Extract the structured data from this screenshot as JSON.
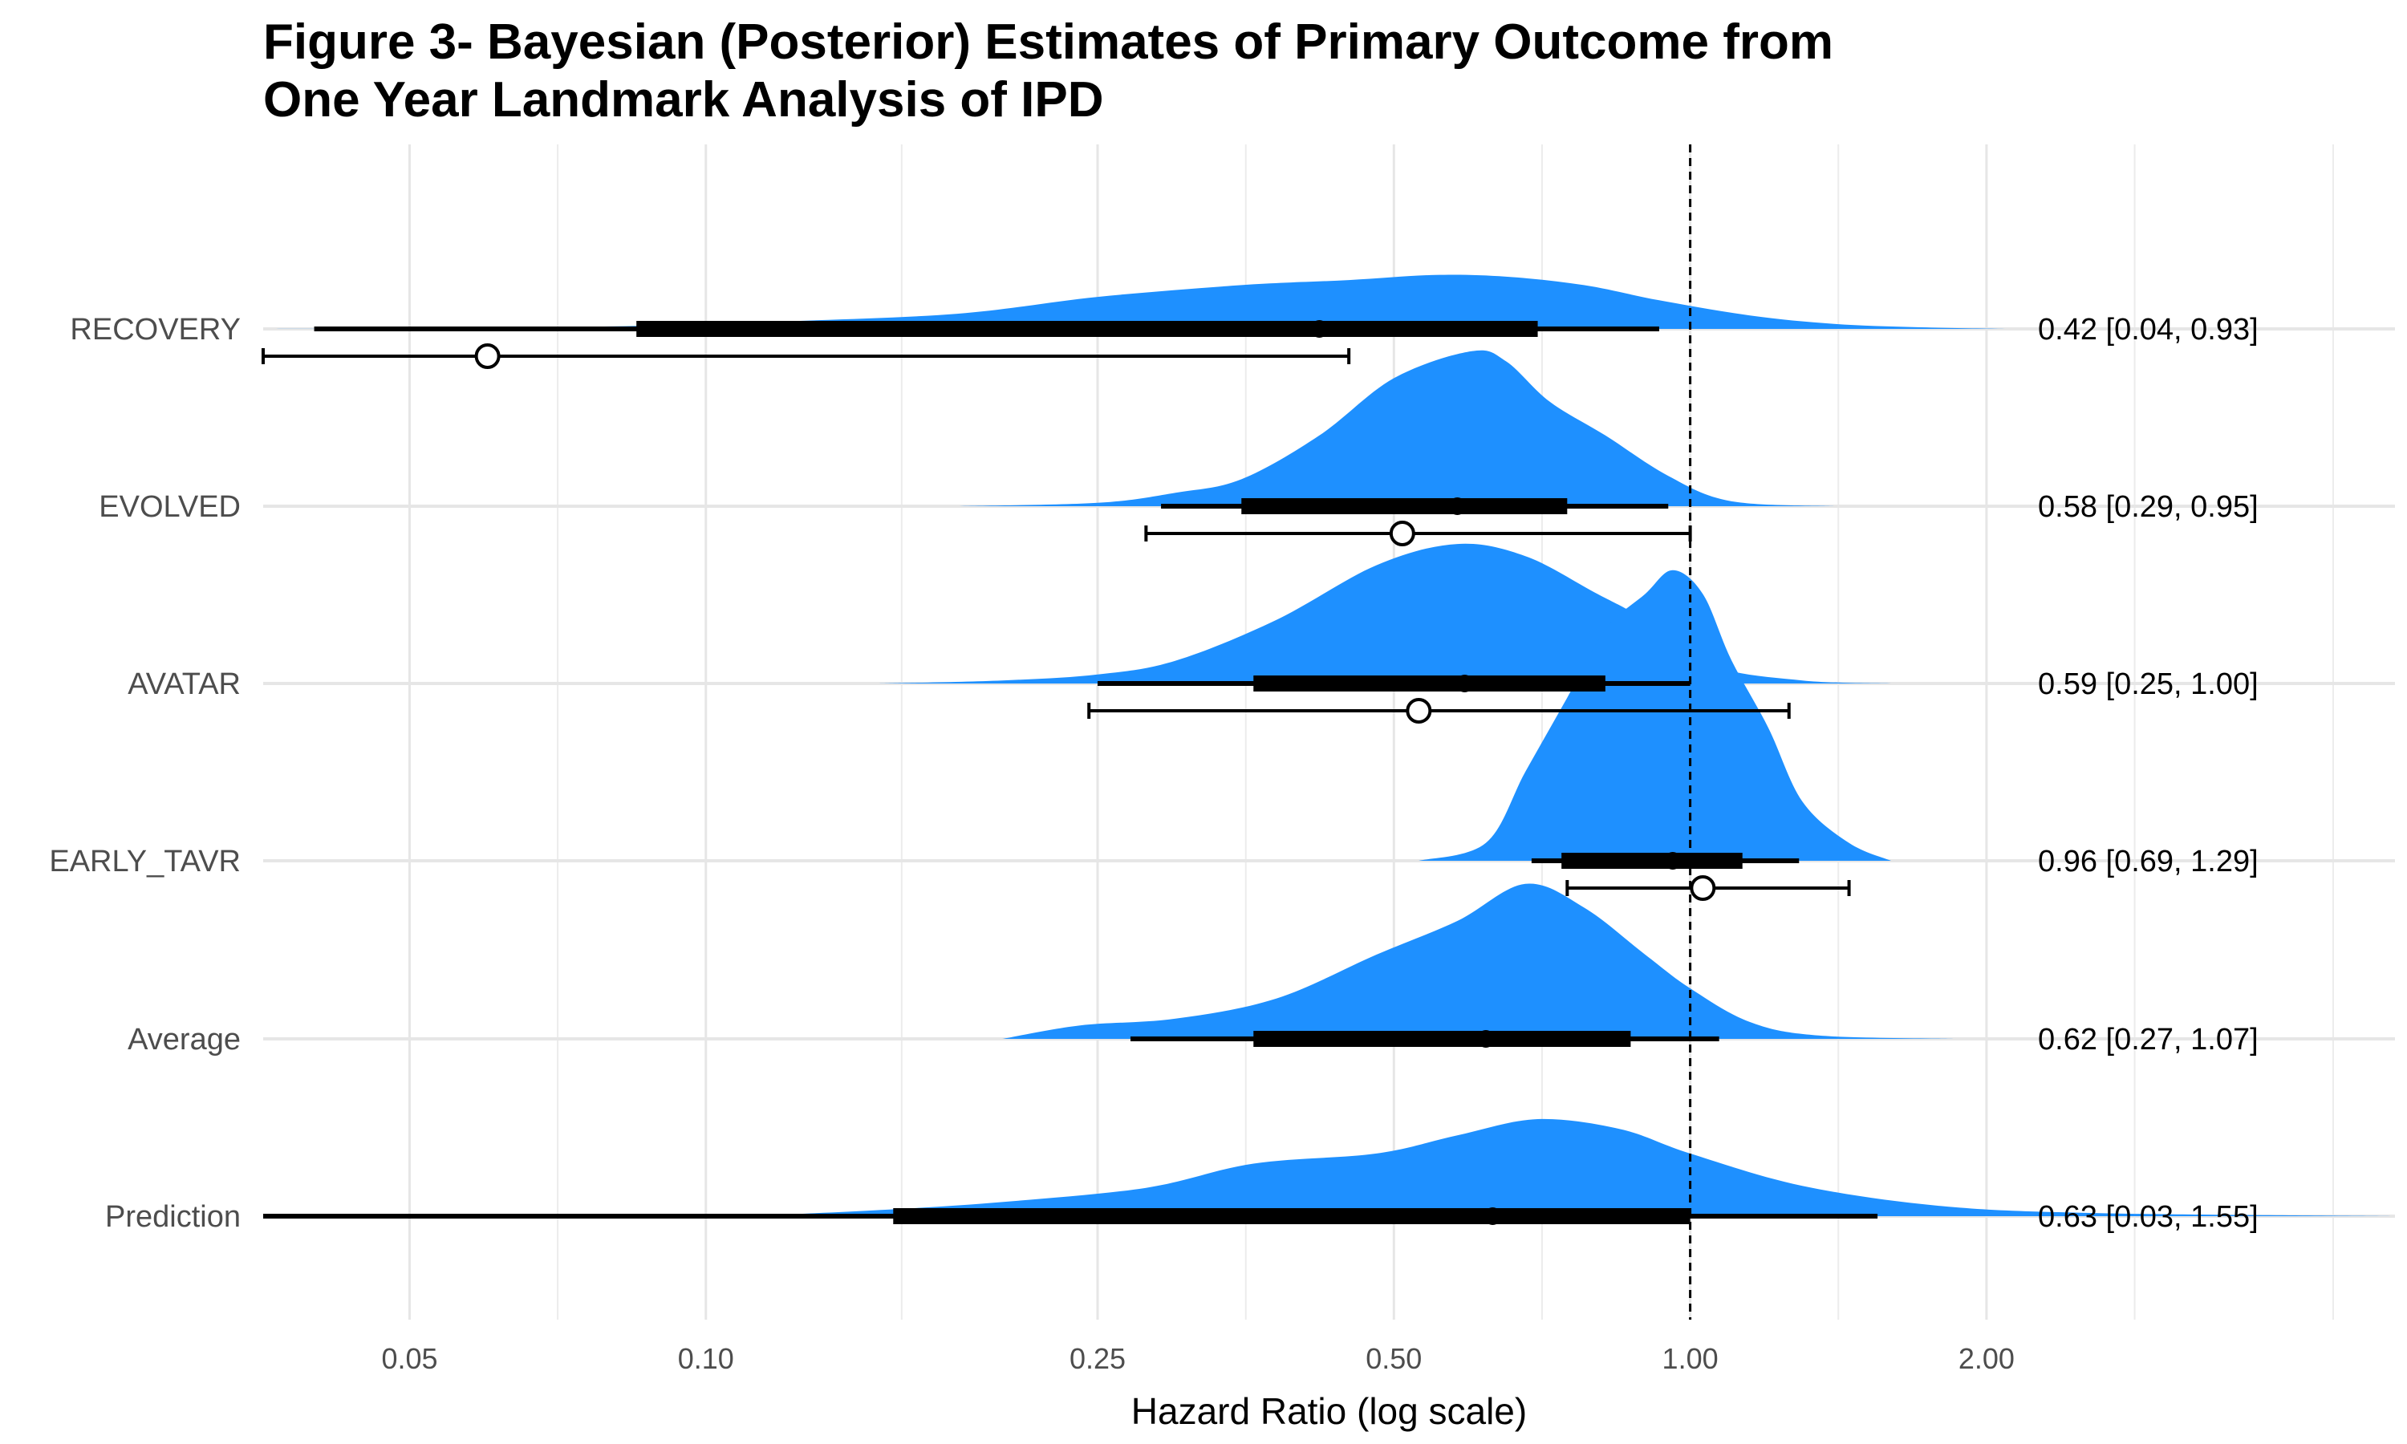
{
  "chart_data": {
    "type": "forest-density",
    "title_lines": [
      "Figure 3- Bayesian (Posterior) Estimates of Primary Outcome from",
      "One Year Landmark Analysis of IPD"
    ],
    "xlabel": "Hazard Ratio (log scale)",
    "ylabel": "",
    "x_scale": "log",
    "xlim": [
      0.0355,
      5.2
    ],
    "x_ticks": [
      0.05,
      0.1,
      0.25,
      0.5,
      1.0,
      2.0
    ],
    "x_tick_labels": [
      "0.05",
      "0.10",
      "0.25",
      "0.50",
      "1.00",
      "2.00"
    ],
    "reference_line": 1.0,
    "grid": true,
    "density_color": "#1E90FF",
    "rows": [
      {
        "label": "RECOVERY",
        "posterior": {
          "median": 0.42,
          "inner_interval": [
            0.085,
            0.7
          ],
          "outer_interval": [
            0.04,
            0.93
          ],
          "range": [
            0.0355,
            2.1
          ],
          "peak_height": 0.25,
          "shape": [
            [
              0.0355,
              0.0
            ],
            [
              0.05,
              0.006
            ],
            [
              0.08,
              0.03
            ],
            [
              0.12,
              0.09
            ],
            [
              0.18,
              0.18
            ],
            [
              0.25,
              0.38
            ],
            [
              0.35,
              0.52
            ],
            [
              0.45,
              0.58
            ],
            [
              0.55,
              0.64
            ],
            [
              0.65,
              0.62
            ],
            [
              0.78,
              0.52
            ],
            [
              0.93,
              0.34
            ],
            [
              1.15,
              0.16
            ],
            [
              1.4,
              0.06
            ],
            [
              1.7,
              0.02
            ],
            [
              2.1,
              0.0
            ]
          ]
        },
        "observed": {
          "estimate": 0.06,
          "ci": [
            0.0355,
            0.45
          ]
        },
        "annotation": "0.42 [0.04, 0.93]"
      },
      {
        "label": "EVOLVED",
        "posterior": {
          "median": 0.58,
          "inner_interval": [
            0.35,
            0.75
          ],
          "outer_interval": [
            0.29,
            0.95
          ],
          "range": [
            0.18,
            1.4
          ],
          "peak_height": 0.5,
          "shape": [
            [
              0.18,
              0.0
            ],
            [
              0.25,
              0.02
            ],
            [
              0.3,
              0.08
            ],
            [
              0.35,
              0.16
            ],
            [
              0.42,
              0.42
            ],
            [
              0.5,
              0.76
            ],
            [
              0.6,
              0.92
            ],
            [
              0.65,
              0.86
            ],
            [
              0.72,
              0.62
            ],
            [
              0.82,
              0.42
            ],
            [
              0.95,
              0.18
            ],
            [
              1.1,
              0.03
            ],
            [
              1.4,
              0.0
            ]
          ]
        },
        "observed": {
          "estimate": 0.51,
          "ci": [
            0.28,
            1.0
          ]
        },
        "annotation": "0.58 [0.29, 0.95]"
      },
      {
        "label": "AVATAR",
        "posterior": {
          "median": 0.59,
          "inner_interval": [
            0.36,
            0.82
          ],
          "outer_interval": [
            0.25,
            1.0
          ],
          "range": [
            0.15,
            1.6
          ],
          "peak_height": 0.45,
          "shape": [
            [
              0.15,
              0.0
            ],
            [
              0.2,
              0.02
            ],
            [
              0.25,
              0.06
            ],
            [
              0.3,
              0.15
            ],
            [
              0.38,
              0.42
            ],
            [
              0.48,
              0.78
            ],
            [
              0.58,
              0.92
            ],
            [
              0.68,
              0.84
            ],
            [
              0.8,
              0.6
            ],
            [
              0.9,
              0.42
            ],
            [
              1.05,
              0.12
            ],
            [
              1.3,
              0.02
            ],
            [
              1.6,
              0.0
            ]
          ]
        },
        "observed": {
          "estimate": 0.53,
          "ci": [
            0.245,
            1.26
          ]
        },
        "annotation": "0.59 [0.25, 1.00]"
      },
      {
        "label": "EARLY_TAVR",
        "posterior": {
          "median": 0.96,
          "inner_interval": [
            0.74,
            1.13
          ],
          "outer_interval": [
            0.69,
            1.29
          ],
          "range": [
            0.53,
            1.6
          ],
          "peak_height": 0.88,
          "shape": [
            [
              0.53,
              0.0
            ],
            [
              0.62,
              0.06
            ],
            [
              0.68,
              0.3
            ],
            [
              0.75,
              0.55
            ],
            [
              0.82,
              0.78
            ],
            [
              0.9,
              0.9
            ],
            [
              0.96,
              0.98
            ],
            [
              1.03,
              0.9
            ],
            [
              1.1,
              0.68
            ],
            [
              1.2,
              0.45
            ],
            [
              1.3,
              0.2
            ],
            [
              1.45,
              0.06
            ],
            [
              1.6,
              0.0
            ]
          ]
        },
        "observed": {
          "estimate": 1.03,
          "ci": [
            0.75,
            1.45
          ]
        },
        "annotation": "0.96 [0.69, 1.29]"
      },
      {
        "label": "Average",
        "posterior": {
          "median": 0.62,
          "inner_interval": [
            0.36,
            0.87
          ],
          "outer_interval": [
            0.27,
            1.07
          ],
          "range": [
            0.2,
            1.85
          ],
          "peak_height": 0.5,
          "shape": [
            [
              0.2,
              0.0
            ],
            [
              0.24,
              0.08
            ],
            [
              0.3,
              0.12
            ],
            [
              0.38,
              0.24
            ],
            [
              0.48,
              0.5
            ],
            [
              0.58,
              0.7
            ],
            [
              0.68,
              0.92
            ],
            [
              0.78,
              0.78
            ],
            [
              0.9,
              0.5
            ],
            [
              1.0,
              0.3
            ],
            [
              1.15,
              0.1
            ],
            [
              1.35,
              0.02
            ],
            [
              1.85,
              0.0
            ]
          ]
        },
        "observed": null,
        "annotation": "0.62 [0.27, 1.07]"
      },
      {
        "label": "Prediction",
        "posterior": {
          "median": 0.63,
          "inner_interval": [
            0.155,
            1.0
          ],
          "outer_interval": [
            0.03,
            1.55
          ],
          "range": [
            0.11,
            5.2
          ],
          "peak_height": 0.3,
          "shape": [
            [
              0.11,
              0.0
            ],
            [
              0.15,
              0.06
            ],
            [
              0.2,
              0.14
            ],
            [
              0.28,
              0.28
            ],
            [
              0.36,
              0.52
            ],
            [
              0.48,
              0.62
            ],
            [
              0.58,
              0.8
            ],
            [
              0.7,
              0.96
            ],
            [
              0.85,
              0.86
            ],
            [
              1.0,
              0.62
            ],
            [
              1.3,
              0.3
            ],
            [
              1.8,
              0.1
            ],
            [
              2.6,
              0.03
            ],
            [
              5.2,
              0.0
            ]
          ]
        },
        "observed": null,
        "annotation": "0.63 [0.03, 1.55]"
      }
    ]
  }
}
